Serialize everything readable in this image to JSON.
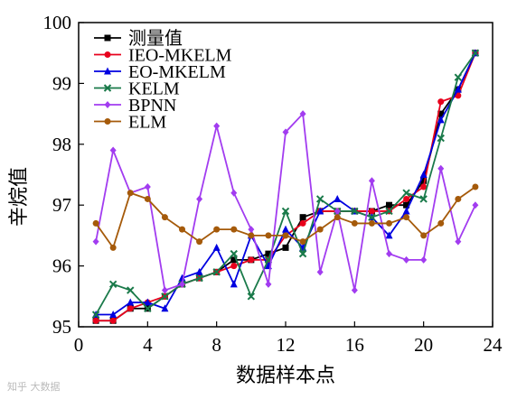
{
  "chart_data": {
    "type": "line",
    "xlabel": "数据样本点",
    "ylabel": "辛烷值",
    "xlim": [
      0,
      24
    ],
    "ylim": [
      95,
      100
    ],
    "xticks": [
      0,
      4,
      8,
      12,
      16,
      20,
      24
    ],
    "yticks": [
      95,
      96,
      97,
      98,
      99,
      100
    ],
    "grid": false,
    "legend_position": "top-left",
    "x": [
      1,
      2,
      3,
      4,
      5,
      6,
      7,
      8,
      9,
      10,
      11,
      12,
      13,
      14,
      15,
      16,
      17,
      18,
      19,
      20,
      21,
      22,
      23
    ],
    "series": [
      {
        "name": "测量值",
        "color": "#000000",
        "marker": "square",
        "values": [
          95.1,
          95.1,
          95.3,
          95.3,
          95.5,
          95.7,
          95.8,
          95.9,
          96.1,
          96.1,
          96.2,
          96.3,
          96.8,
          96.9,
          96.9,
          96.9,
          96.9,
          97.0,
          97.0,
          97.4,
          98.5,
          98.9,
          99.5
        ]
      },
      {
        "name": "IEO-MKELM",
        "color": "#e8001c",
        "marker": "circle",
        "values": [
          95.1,
          95.1,
          95.3,
          95.4,
          95.5,
          95.7,
          95.8,
          95.9,
          96.0,
          96.1,
          96.1,
          96.5,
          96.7,
          96.9,
          96.9,
          96.9,
          96.9,
          96.9,
          97.1,
          97.3,
          98.7,
          98.8,
          99.5
        ]
      },
      {
        "name": "EO-MKELM",
        "color": "#0000e0",
        "marker": "triangle",
        "values": [
          95.2,
          95.2,
          95.4,
          95.4,
          95.3,
          95.8,
          95.9,
          96.3,
          95.7,
          96.5,
          96.0,
          96.6,
          96.3,
          96.9,
          97.1,
          96.9,
          96.8,
          96.5,
          96.9,
          97.5,
          98.4,
          98.9,
          99.5
        ]
      },
      {
        "name": "KELM",
        "color": "#1a7a4a",
        "marker": "x",
        "values": [
          95.2,
          95.7,
          95.6,
          95.3,
          95.5,
          95.7,
          95.8,
          95.9,
          96.2,
          95.5,
          96.1,
          96.9,
          96.2,
          97.1,
          96.9,
          96.9,
          96.8,
          96.9,
          97.2,
          97.1,
          98.1,
          99.1,
          99.5
        ]
      },
      {
        "name": "BPNN",
        "color": "#a23cf0",
        "marker": "diamond",
        "values": [
          96.4,
          97.9,
          97.2,
          97.3,
          95.6,
          95.7,
          97.1,
          98.3,
          97.2,
          96.6,
          95.7,
          98.2,
          98.5,
          95.9,
          96.9,
          95.6,
          97.4,
          96.2,
          96.1,
          96.1,
          97.6,
          96.4,
          97.0
        ]
      },
      {
        "name": "ELM",
        "color": "#a55a0a",
        "marker": "circle",
        "values": [
          96.7,
          96.3,
          97.2,
          97.1,
          96.8,
          96.6,
          96.4,
          96.6,
          96.6,
          96.5,
          96.5,
          96.5,
          96.4,
          96.6,
          96.8,
          96.7,
          96.7,
          96.7,
          96.8,
          96.5,
          96.7,
          97.1,
          97.3
        ]
      }
    ]
  },
  "watermark": "知乎 大数据"
}
